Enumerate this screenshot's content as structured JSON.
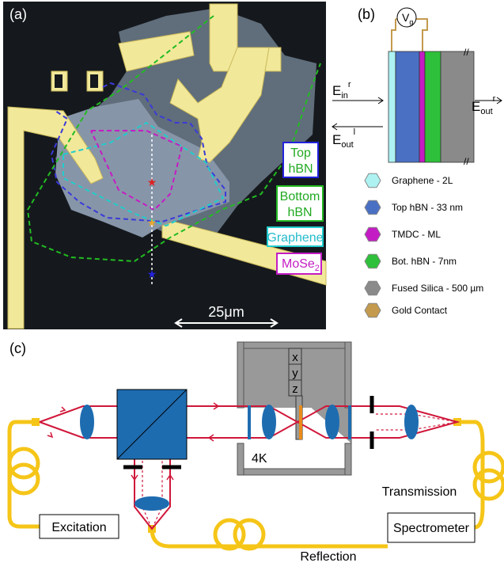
{
  "panel_a": {
    "label": "(a)",
    "top_hbn": {
      "line1": "Top",
      "line2": "hBN"
    },
    "bottom_hbn": {
      "line1": "Bottom",
      "line2": "hBN"
    },
    "graphene": "Graphene",
    "mose2": {
      "base": "MoSe",
      "sub": "2"
    },
    "scale_bar": "25μm"
  },
  "panel_b": {
    "label": "(b)",
    "gate": {
      "base": "V",
      "sub": "g"
    },
    "e_in_r": {
      "base": "E",
      "sub": "in",
      "sup": "r"
    },
    "e_out_l": {
      "base": "E",
      "sub": "out",
      "sup": "l"
    },
    "e_out_r": {
      "base": "E",
      "sub": "out",
      "sup": "r"
    },
    "legend": [
      {
        "name": "Graphene - 2L",
        "color": "#aef2f2"
      },
      {
        "name": "Top hBN - 33 nm",
        "color": "#4a70c4"
      },
      {
        "name": "TMDC - ML",
        "color": "#c41cc4"
      },
      {
        "name": "Bot. hBN - 7nm",
        "color": "#2ec03a"
      },
      {
        "name": "Fused Silica - 500 µm",
        "color": "#8a8a8a"
      },
      {
        "name": "Gold Contact",
        "color": "#c49a4e"
      }
    ]
  },
  "panel_c": {
    "label": "(c)",
    "stage": [
      "x",
      "y",
      "z"
    ],
    "temperature": "4K",
    "transmission": "Transmission",
    "reflection": "Reflection",
    "excitation": "Excitation",
    "spectrometer": "Spectrometer"
  }
}
